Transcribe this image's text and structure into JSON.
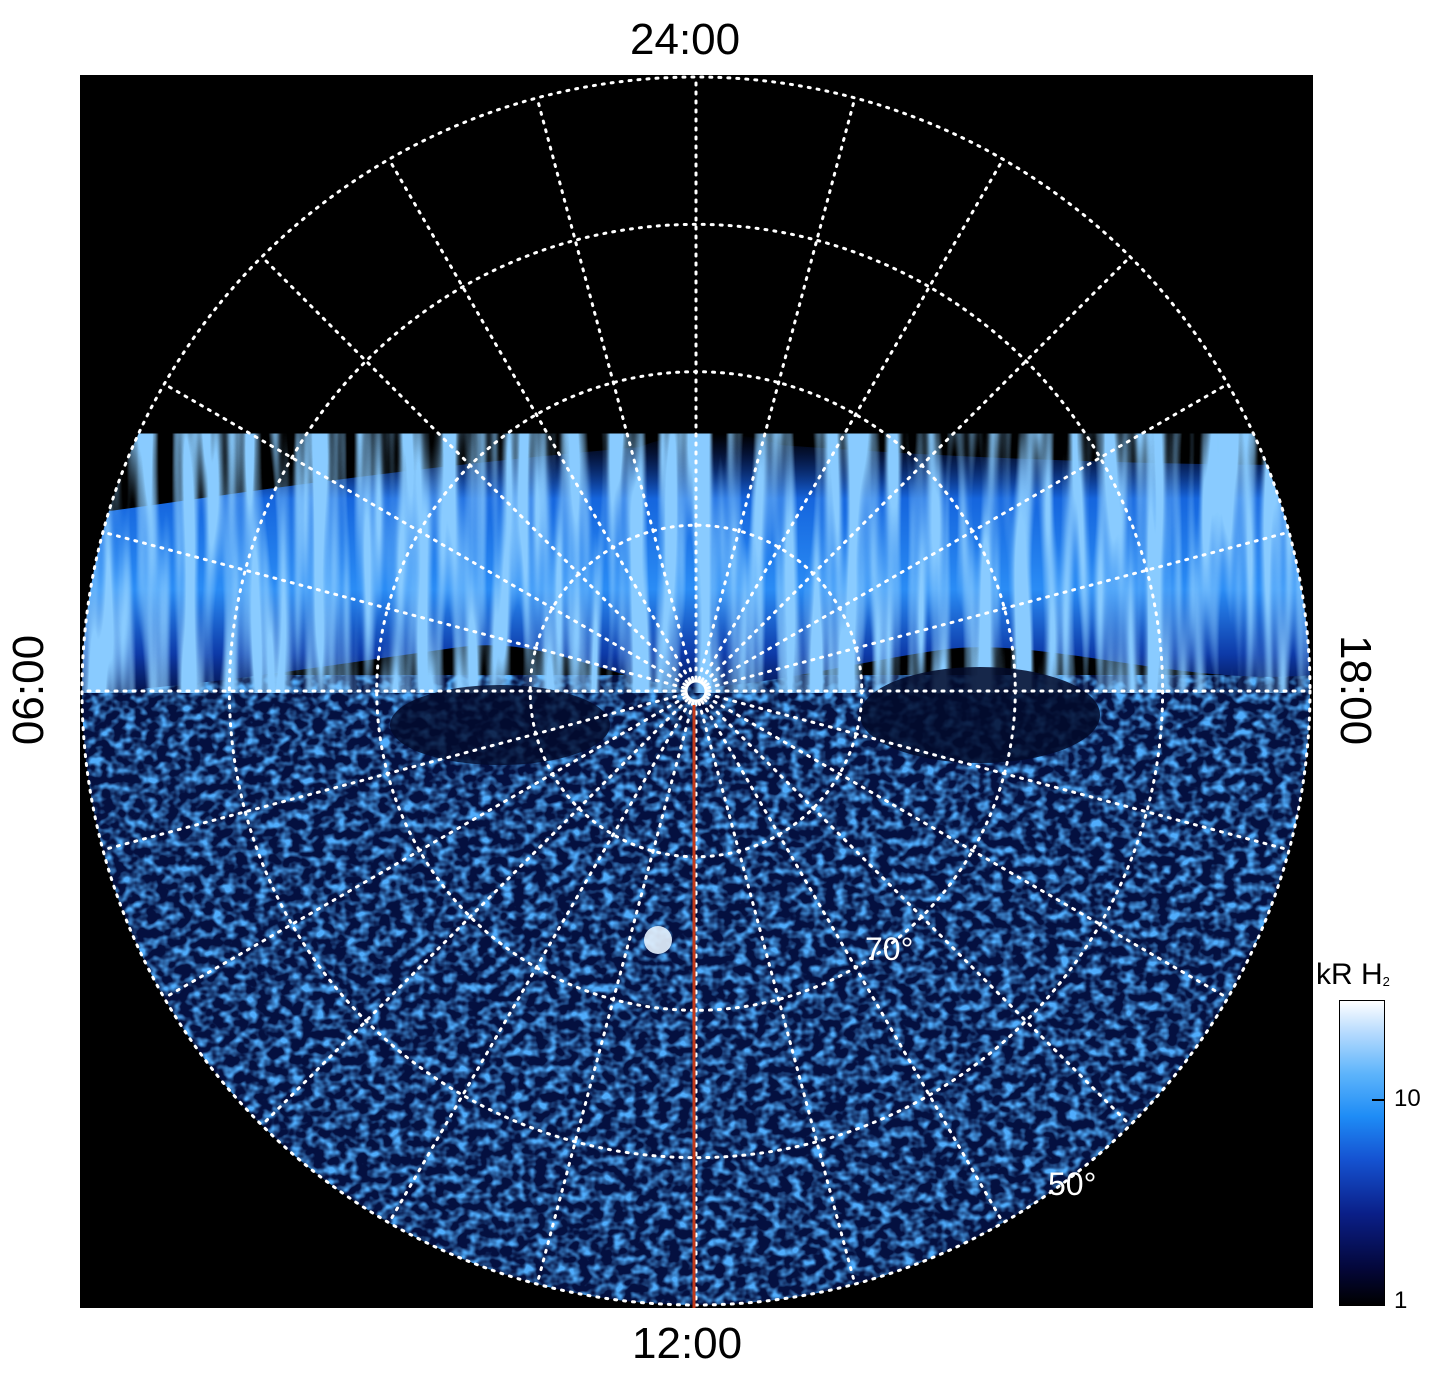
{
  "time_labels": {
    "top": "24:00",
    "bottom": "12:00",
    "left": "06:00",
    "right": "18:00"
  },
  "latitude_labels": [
    "70°",
    "50°"
  ],
  "colorbar": {
    "title": "kR H",
    "title_subscript": "2",
    "ticks": [
      "10",
      "1"
    ]
  },
  "colors": {
    "background": "#000000",
    "grid": "#ffffff",
    "meridian_marker": "#c0391b",
    "aurora_bright": "#bfe3ff",
    "aurora_mid": "#1e8cf6",
    "aurora_dark": "#0a1f88"
  }
}
